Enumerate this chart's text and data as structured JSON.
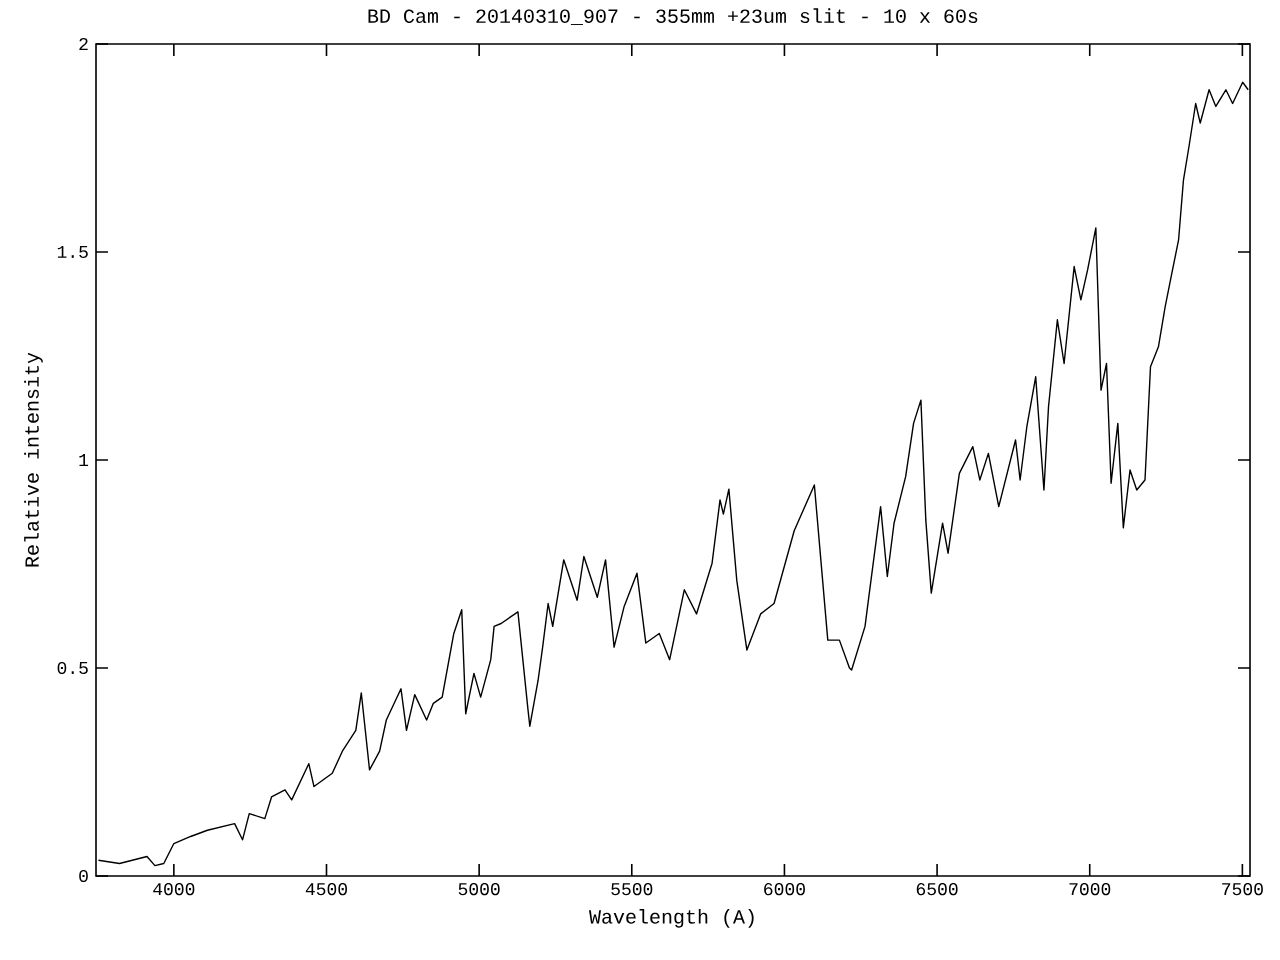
{
  "chart_data": {
    "type": "line",
    "title": "BD Cam - 20140310_907 - 355mm +23um slit - 10 x 60s",
    "xlabel": "Wavelength (A)",
    "ylabel": "Relative intensity",
    "xlim": [
      3745,
      7525
    ],
    "ylim": [
      0,
      2
    ],
    "xticks": [
      4000,
      4500,
      5000,
      5500,
      6000,
      6500,
      7000,
      7500
    ],
    "yticks": [
      0,
      {
        "value": 0.5,
        "label": "0.5"
      },
      1,
      {
        "value": 1.5,
        "label": "1.5"
      },
      2
    ],
    "grid": false,
    "marker": "none",
    "line_style": "solid",
    "series": [
      {
        "color": "#000000",
        "x": [
          3753,
          3822,
          3912,
          3938,
          3967,
          4000,
          4055,
          4110,
          4199,
          4225,
          4247,
          4298,
          4320,
          4364,
          4386,
          4442,
          4459,
          4519,
          4552,
          4596,
          4614,
          4641,
          4674,
          4696,
          4744,
          4762,
          4789,
          4828,
          4850,
          4879,
          4917,
          4943,
          4956,
          4983,
          5005,
          5038,
          5049,
          5072,
          5127,
          5160,
          5166,
          5193,
          5208,
          5226,
          5241,
          5277,
          5321,
          5343,
          5387,
          5414,
          5442,
          5475,
          5517,
          5546,
          5590,
          5624,
          5672,
          5712,
          5763,
          5789,
          5800,
          5818,
          5844,
          5877,
          5922,
          5966,
          6032,
          6098,
          6142,
          6180,
          6213,
          6220,
          6264,
          6275,
          6315,
          6337,
          6359,
          6397,
          6423,
          6447,
          6463,
          6481,
          6518,
          6536,
          6573,
          6617,
          6640,
          6668,
          6702,
          6757,
          6772,
          6794,
          6823,
          6850,
          6865,
          6894,
          6916,
          6949,
          6971,
          6993,
          7020,
          7037,
          7055,
          7070,
          7092,
          7110,
          7132,
          7154,
          7181,
          7199,
          7225,
          7247,
          7269,
          7291,
          7307,
          7325,
          7347,
          7362,
          7391,
          7413,
          7446,
          7468,
          7501,
          7519
        ],
        "values": [
          0.038,
          0.03,
          0.047,
          0.025,
          0.03,
          0.078,
          0.095,
          0.11,
          0.126,
          0.087,
          0.15,
          0.138,
          0.19,
          0.207,
          0.183,
          0.27,
          0.215,
          0.247,
          0.3,
          0.35,
          0.44,
          0.255,
          0.3,
          0.375,
          0.45,
          0.35,
          0.436,
          0.375,
          0.415,
          0.43,
          0.583,
          0.64,
          0.39,
          0.487,
          0.43,
          0.52,
          0.6,
          0.607,
          0.635,
          0.4,
          0.36,
          0.47,
          0.55,
          0.655,
          0.6,
          0.76,
          0.663,
          0.768,
          0.67,
          0.76,
          0.55,
          0.648,
          0.728,
          0.56,
          0.583,
          0.52,
          0.688,
          0.63,
          0.752,
          0.904,
          0.87,
          0.93,
          0.71,
          0.543,
          0.63,
          0.655,
          0.83,
          0.94,
          0.567,
          0.567,
          0.5,
          0.495,
          0.6,
          0.663,
          0.888,
          0.72,
          0.848,
          0.96,
          1.088,
          1.144,
          0.856,
          0.68,
          0.848,
          0.776,
          0.968,
          1.032,
          0.952,
          1.016,
          0.888,
          1.048,
          0.952,
          1.08,
          1.2,
          0.928,
          1.128,
          1.337,
          1.232,
          1.465,
          1.385,
          1.457,
          1.558,
          1.168,
          1.232,
          0.944,
          1.088,
          0.837,
          0.976,
          0.928,
          0.952,
          1.224,
          1.272,
          1.368,
          1.449,
          1.529,
          1.673,
          1.753,
          1.857,
          1.81,
          1.89,
          1.85,
          1.89,
          1.857,
          1.908,
          1.89
        ]
      }
    ]
  }
}
